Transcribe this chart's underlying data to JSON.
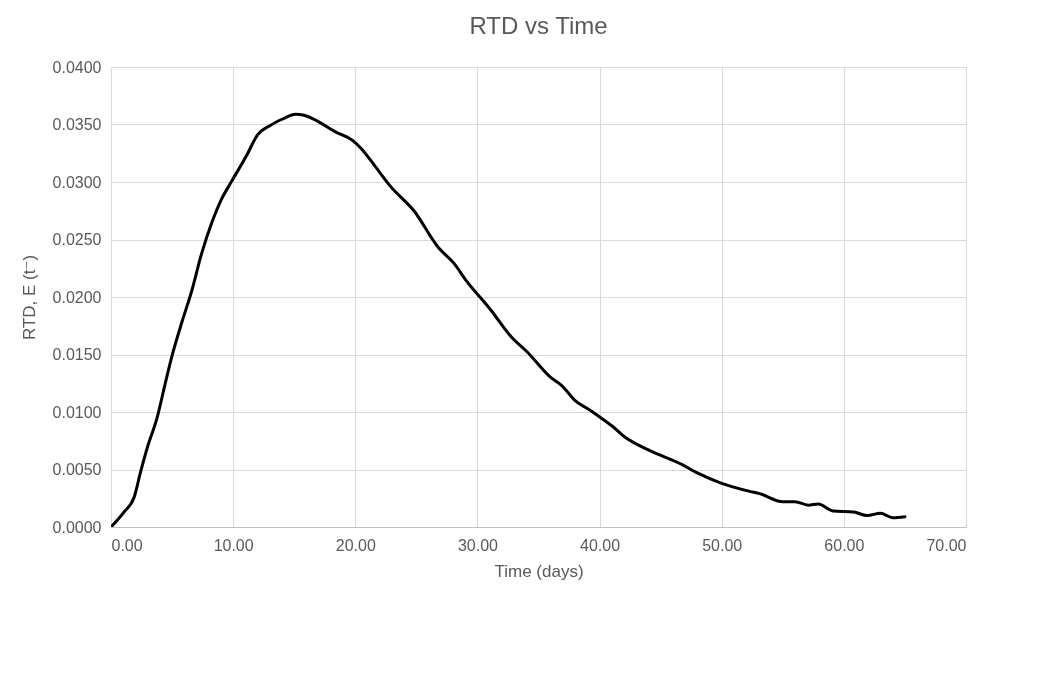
{
  "chart_data": {
    "type": "line",
    "title": "RTD vs Time",
    "xlabel": "Time (days)",
    "ylabel": "RTD, E (t⁻)",
    "x": [
      0,
      1.06,
      1.9,
      2.4,
      3.0,
      3.8,
      4.4,
      5.0,
      5.8,
      6.6,
      7.4,
      8.3,
      9.0,
      9.9,
      11.1,
      12.0,
      13.0,
      14.1,
      15.1,
      15.8,
      16.9,
      18.3,
      19.8,
      20.5,
      21.6,
      22.9,
      24.8,
      26.8,
      28.1,
      29.1,
      31.0,
      32.8,
      34.1,
      35.9,
      36.9,
      38.1,
      39.0,
      40.1,
      41.0,
      42.1,
      44.0,
      46.8,
      48.0,
      50.0,
      52.3,
      53.1,
      55.0,
      56.0,
      57.1,
      57.9,
      59.1,
      60.8,
      61.9,
      63.0,
      64.0,
      65.0
    ],
    "series": [
      {
        "color": "#000000",
        "values": [
          0,
          0.0013,
          0.0026,
          0.0047,
          0.007,
          0.0096,
          0.0123,
          0.0149,
          0.0178,
          0.0205,
          0.0237,
          0.0266,
          0.0284,
          0.0301,
          0.0323,
          0.0341,
          0.0349,
          0.0355,
          0.0359,
          0.0358,
          0.0353,
          0.0344,
          0.0336,
          0.0329,
          0.0314,
          0.0296,
          0.0275,
          0.0243,
          0.0229,
          0.0214,
          0.019,
          0.0165,
          0.0152,
          0.0131,
          0.0123,
          0.0109,
          0.0103,
          0.0095,
          0.0088,
          0.0078,
          0.0067,
          0.0054,
          0.0047,
          0.0038,
          0.0031,
          0.0029,
          0.0022,
          0.0022,
          0.0019,
          0.002,
          0.0014,
          0.0013,
          0.001,
          0.0012,
          0.0008,
          0.0009
        ]
      }
    ],
    "xlim": [
      0,
      70
    ],
    "xticks": [
      {
        "value": 0,
        "label": "0.00"
      },
      {
        "value": 10,
        "label": "10.00"
      },
      {
        "value": 20,
        "label": "20.00"
      },
      {
        "value": 30,
        "label": "30.00"
      },
      {
        "value": 40,
        "label": "40.00"
      },
      {
        "value": 50,
        "label": "50.00"
      },
      {
        "value": 60,
        "label": "60.00"
      },
      {
        "value": 70,
        "label": "70.00"
      }
    ],
    "ylim": [
      0,
      0.04
    ],
    "yticks": [
      {
        "value": 0,
        "label": "0.0000"
      },
      {
        "value": 0.005,
        "label": "0.0050"
      },
      {
        "value": 0.01,
        "label": "0.0100"
      },
      {
        "value": 0.015,
        "label": "0.0150"
      },
      {
        "value": 0.02,
        "label": "0.0200"
      },
      {
        "value": 0.025,
        "label": "0.0250"
      },
      {
        "value": 0.03,
        "label": "0.0300"
      },
      {
        "value": 0.035,
        "label": "0.0350"
      },
      {
        "value": 0.04,
        "label": "0.0400"
      }
    ],
    "grid": true
  }
}
